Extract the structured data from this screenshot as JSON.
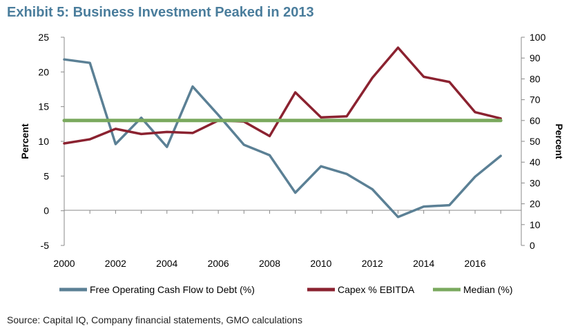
{
  "title": "Exhibit 5: Business Investment Peaked in 2013",
  "source": "Source: Capital IQ, Company financial statements, GMO calculations",
  "colors": {
    "fcf": "#5b8095",
    "capex": "#8b2230",
    "median": "#7aa95e",
    "title": "#4a7d9c"
  },
  "chart_data": {
    "type": "line",
    "title": "Exhibit 5: Business Investment Peaked in 2013",
    "x": [
      2000,
      2001,
      2002,
      2003,
      2004,
      2005,
      2006,
      2007,
      2008,
      2009,
      2010,
      2011,
      2012,
      2013,
      2014,
      2015,
      2016,
      2017
    ],
    "x_ticks": [
      "2000",
      "2002",
      "2004",
      "2006",
      "2008",
      "2010",
      "2012",
      "2014",
      "2016"
    ],
    "xlim": [
      2000,
      2017.8
    ],
    "ylabel_left": "Percent",
    "ylabel_right": "Percent",
    "ylim_left": [
      -5,
      25
    ],
    "ylim_right": [
      0,
      100
    ],
    "yticks_left": [
      "-5",
      "0",
      "5",
      "10",
      "15",
      "20",
      "25"
    ],
    "yticks_right": [
      "0",
      "10",
      "20",
      "30",
      "40",
      "50",
      "60",
      "70",
      "80",
      "90",
      "100"
    ],
    "legend_position": "bottom",
    "series": [
      {
        "name": "Free Operating Cash Flow to Debt (%)",
        "axis": "left",
        "color": "#5b8095",
        "values": [
          21.8,
          21.3,
          9.6,
          13.4,
          9.2,
          17.9,
          13.8,
          9.5,
          8.0,
          2.6,
          6.4,
          5.3,
          3.1,
          -0.9,
          0.6,
          0.8,
          4.9,
          7.9
        ]
      },
      {
        "name": "Capex % EBITDA",
        "axis": "right",
        "color": "#8b2230",
        "values": [
          49.0,
          51.0,
          56.0,
          53.5,
          54.5,
          54.0,
          60.0,
          59.5,
          52.5,
          73.5,
          61.5,
          62.0,
          80.5,
          95.0,
          81.0,
          78.5,
          64.0,
          61.0
        ]
      },
      {
        "name": "Median  (%)",
        "axis": "right",
        "color": "#7aa95e",
        "values": [
          60,
          60,
          60,
          60,
          60,
          60,
          60,
          60,
          60,
          60,
          60,
          60,
          60,
          60,
          60,
          60,
          60,
          60
        ]
      }
    ]
  }
}
